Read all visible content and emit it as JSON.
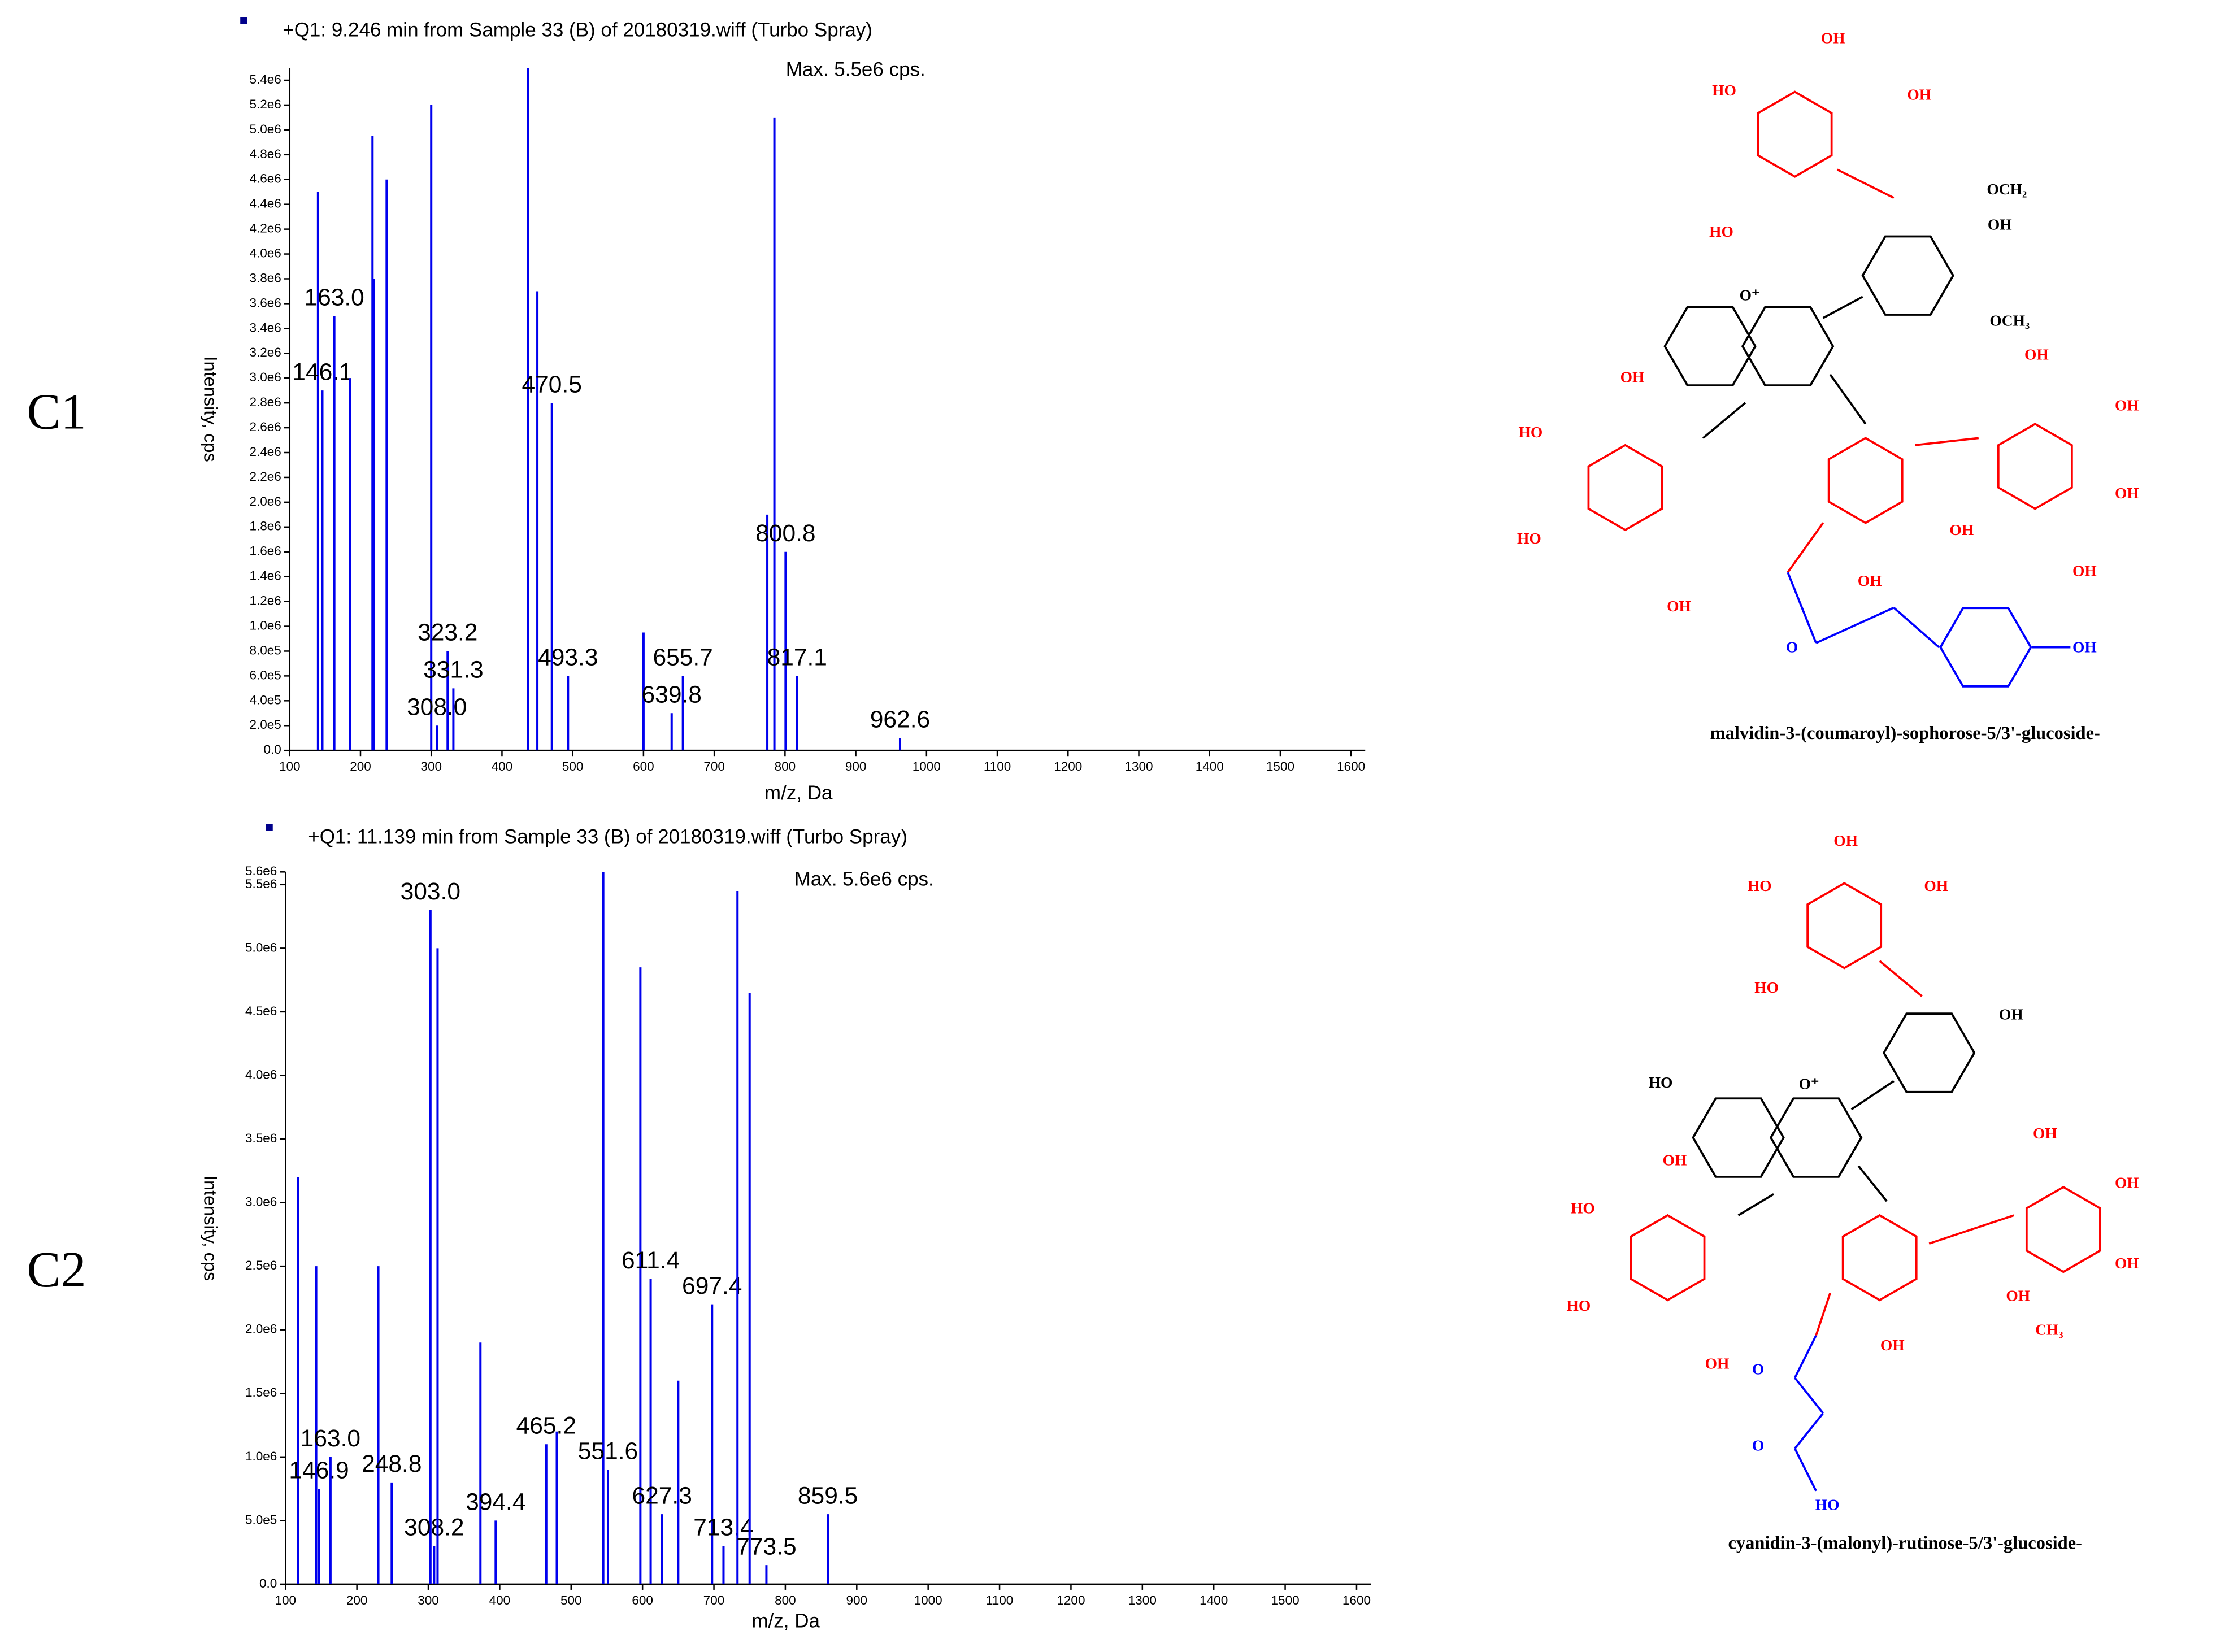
{
  "chart_data": [
    {
      "type": "spectrum",
      "panel_label": "C1",
      "title": "+Q1: 9.246 min from Sample 33 (B) of 20180319.wiff (Turbo Spray)",
      "annotation": "Max. 5.5e6 cps.",
      "x_label": "m/z, Da",
      "y_label": "Intensity, cps",
      "xlim": [
        100,
        1620
      ],
      "xticks": [
        100,
        200,
        300,
        400,
        500,
        600,
        700,
        800,
        900,
        1000,
        1100,
        1200,
        1300,
        1400,
        1500,
        1600
      ],
      "ylim": [
        0,
        5500000
      ],
      "yticks": [
        {
          "value": 0,
          "label": "0.0"
        },
        {
          "value": 200000,
          "label": "2.0e5"
        },
        {
          "value": 400000,
          "label": "4.0e5"
        },
        {
          "value": 600000,
          "label": "6.0e5"
        },
        {
          "value": 800000,
          "label": "8.0e5"
        },
        {
          "value": 1000000,
          "label": "1.0e6"
        },
        {
          "value": 1200000,
          "label": "1.2e6"
        },
        {
          "value": 1400000,
          "label": "1.4e6"
        },
        {
          "value": 1600000,
          "label": "1.6e6"
        },
        {
          "value": 1800000,
          "label": "1.8e6"
        },
        {
          "value": 2000000,
          "label": "2.0e6"
        },
        {
          "value": 2200000,
          "label": "2.2e6"
        },
        {
          "value": 2400000,
          "label": "2.4e6"
        },
        {
          "value": 2600000,
          "label": "2.6e6"
        },
        {
          "value": 2800000,
          "label": "2.8e6"
        },
        {
          "value": 3000000,
          "label": "3.0e6"
        },
        {
          "value": 3200000,
          "label": "3.2e6"
        },
        {
          "value": 3400000,
          "label": "3.4e6"
        },
        {
          "value": 3600000,
          "label": "3.6e6"
        },
        {
          "value": 3800000,
          "label": "3.8e6"
        },
        {
          "value": 4000000,
          "label": "4.0e6"
        },
        {
          "value": 4200000,
          "label": "4.2e6"
        },
        {
          "value": 4400000,
          "label": "4.4e6"
        },
        {
          "value": 4600000,
          "label": "4.6e6"
        },
        {
          "value": 4800000,
          "label": "4.8e6"
        },
        {
          "value": 5000000,
          "label": "5.0e6"
        },
        {
          "value": 5200000,
          "label": "5.2e6"
        },
        {
          "value": 5400000,
          "label": "5.4e6"
        }
      ],
      "series": [
        {
          "color": "#0000ee",
          "x": [
            140,
            146.1,
            163.0,
            185,
            217,
            219,
            237,
            300,
            308.0,
            323.2,
            331.3,
            437,
            450,
            470.5,
            493.3,
            600,
            639.8,
            655.7,
            775,
            785,
            800.8,
            817.1,
            962.6
          ],
          "values": [
            4500000,
            2900000,
            3500000,
            3000000,
            4950000,
            3800000,
            4600000,
            5200000,
            200000,
            800000,
            500000,
            5500000,
            3700000,
            2800000,
            600000,
            950000,
            300000,
            600000,
            1900000,
            5100000,
            1600000,
            600000,
            100000
          ],
          "x_labels": [
            null,
            "146.1",
            "163.0",
            null,
            null,
            null,
            null,
            null,
            "308.0",
            "323.2",
            "331.3",
            null,
            null,
            "470.5",
            "493.3",
            null,
            "639.8",
            "655.7",
            null,
            null,
            "800.8",
            "817.1",
            "962.6"
          ]
        }
      ]
    },
    {
      "type": "spectrum",
      "panel_label": "C2",
      "title": "+Q1: 11.139 min from Sample 33 (B) of 20180319.wiff (Turbo Spray)",
      "annotation": "Max. 5.6e6 cps.",
      "x_label": "m/z, Da",
      "y_label": "Intensity, cps",
      "xlim": [
        100,
        1620
      ],
      "xticks": [
        100,
        200,
        300,
        400,
        500,
        600,
        700,
        800,
        900,
        1000,
        1100,
        1200,
        1300,
        1400,
        1500,
        1600
      ],
      "ylim": [
        0,
        5600000
      ],
      "yticks": [
        {
          "value": 0,
          "label": "0.0"
        },
        {
          "value": 500000,
          "label": "5.0e5"
        },
        {
          "value": 1000000,
          "label": "1.0e6"
        },
        {
          "value": 1500000,
          "label": "1.5e6"
        },
        {
          "value": 2000000,
          "label": "2.0e6"
        },
        {
          "value": 2500000,
          "label": "2.5e6"
        },
        {
          "value": 3000000,
          "label": "3.0e6"
        },
        {
          "value": 3500000,
          "label": "3.5e6"
        },
        {
          "value": 4000000,
          "label": "4.0e6"
        },
        {
          "value": 4500000,
          "label": "4.5e6"
        },
        {
          "value": 5000000,
          "label": "5.0e6"
        },
        {
          "value": 5500000,
          "label": "5.5e6"
        },
        {
          "value": 5600000,
          "label": "5.6e6"
        }
      ],
      "series": [
        {
          "color": "#0000ee",
          "x": [
            118,
            143,
            146.9,
            163.0,
            230,
            248.8,
            303.0,
            308.2,
            313,
            373,
            394.4,
            465.2,
            480,
            545,
            551.6,
            597,
            611.4,
            627.3,
            650,
            697.4,
            713.4,
            733,
            750,
            773.5,
            859.5
          ],
          "values": [
            3200000,
            2500000,
            750000,
            1000000,
            2500000,
            800000,
            5300000,
            300000,
            5000000,
            1900000,
            500000,
            1100000,
            1200000,
            5600000,
            900000,
            4850000,
            2400000,
            550000,
            1600000,
            2200000,
            300000,
            5450000,
            4650000,
            150000,
            550000
          ],
          "x_labels": [
            null,
            null,
            "146.9",
            "163.0",
            null,
            "248.8",
            "303.0",
            "308.2",
            null,
            null,
            "394.4",
            "465.2",
            null,
            null,
            "551.6",
            null,
            "611.4",
            "627.3",
            null,
            "697.4",
            "713.4",
            null,
            null,
            "773.5",
            "859.5"
          ]
        }
      ]
    }
  ],
  "structures": [
    {
      "caption": "malvidin-3-(coumaroyl)-sophorose-5/3'-glucoside-",
      "labels": [
        "OH",
        "HO",
        "OH",
        "OCH₂",
        "HO",
        "OH",
        "O⁺",
        "OCH₃",
        "OH",
        "HO",
        "HO",
        "OH",
        "OH",
        "OH",
        "OH",
        "OH",
        "OH",
        "OH",
        "O",
        "OH"
      ]
    },
    {
      "caption": "cyanidin-3-(malonyl)-rutinose-5/3'-glucoside-",
      "labels": [
        "OH",
        "HO",
        "OH",
        "HO",
        "OH",
        "HO",
        "O⁺",
        "OH",
        "HO",
        "HO",
        "OH",
        "OH",
        "OH",
        "OH",
        "CH₃",
        "OH",
        "OH",
        "O",
        "O",
        "HO"
      ]
    }
  ]
}
